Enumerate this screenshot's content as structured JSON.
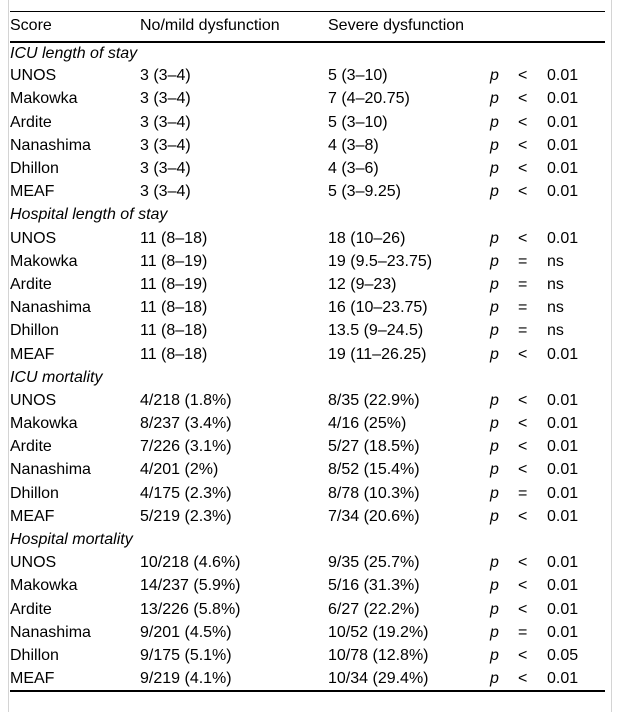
{
  "table": {
    "headers": {
      "score": "Score",
      "no_mild": "No/mild dysfunction",
      "severe": "Severe dysfunction"
    },
    "p_symbol": "p",
    "sections": [
      {
        "label": "ICU length of stay",
        "rows": [
          {
            "score": "UNOS",
            "no_mild": "3 (3–4)",
            "severe": "5 (3–10)",
            "op": "<",
            "p_value": "0.01"
          },
          {
            "score": "Makowka",
            "no_mild": "3 (3–4)",
            "severe": "7 (4–20.75)",
            "op": "<",
            "p_value": "0.01"
          },
          {
            "score": "Ardite",
            "no_mild": "3 (3–4)",
            "severe": "5 (3–10)",
            "op": "<",
            "p_value": "0.01"
          },
          {
            "score": "Nanashima",
            "no_mild": "3 (3–4)",
            "severe": "4 (3–8)",
            "op": "<",
            "p_value": "0.01"
          },
          {
            "score": "Dhillon",
            "no_mild": "3 (3–4)",
            "severe": "4 (3–6)",
            "op": "<",
            "p_value": "0.01"
          },
          {
            "score": "MEAF",
            "no_mild": "3 (3–4)",
            "severe": "5 (3–9.25)",
            "op": "<",
            "p_value": "0.01"
          }
        ]
      },
      {
        "label": "Hospital length of stay",
        "rows": [
          {
            "score": "UNOS",
            "no_mild": "11 (8–18)",
            "severe": "18 (10–26)",
            "op": "<",
            "p_value": "0.01"
          },
          {
            "score": "Makowka",
            "no_mild": "11 (8–19)",
            "severe": "19 (9.5–23.75)",
            "op": "=",
            "p_value": "ns"
          },
          {
            "score": "Ardite",
            "no_mild": "11 (8–19)",
            "severe": "12 (9–23)",
            "op": "=",
            "p_value": "ns"
          },
          {
            "score": "Nanashima",
            "no_mild": "11 (8–18)",
            "severe": "16 (10–23.75)",
            "op": "=",
            "p_value": "ns"
          },
          {
            "score": "Dhillon",
            "no_mild": "11 (8–18)",
            "severe": "13.5 (9–24.5)",
            "op": "=",
            "p_value": "ns"
          },
          {
            "score": "MEAF",
            "no_mild": "11 (8–18)",
            "severe": "19 (11–26.25)",
            "op": "<",
            "p_value": "0.01"
          }
        ]
      },
      {
        "label": "ICU mortality",
        "rows": [
          {
            "score": "UNOS",
            "no_mild": "4/218 (1.8%)",
            "severe": "8/35 (22.9%)",
            "op": "<",
            "p_value": "0.01"
          },
          {
            "score": "Makowka",
            "no_mild": "8/237 (3.4%)",
            "severe": "4/16 (25%)",
            "op": "<",
            "p_value": "0.01"
          },
          {
            "score": "Ardite",
            "no_mild": "7/226 (3.1%)",
            "severe": "5/27 (18.5%)",
            "op": "<",
            "p_value": "0.01"
          },
          {
            "score": "Nanashima",
            "no_mild": "4/201 (2%)",
            "severe": "8/52 (15.4%)",
            "op": "<",
            "p_value": "0.01"
          },
          {
            "score": "Dhillon",
            "no_mild": "4/175 (2.3%)",
            "severe": "8/78 (10.3%)",
            "op": "=",
            "p_value": "0.01"
          },
          {
            "score": "MEAF",
            "no_mild": "5/219 (2.3%)",
            "severe": "7/34 (20.6%)",
            "op": "<",
            "p_value": "0.01"
          }
        ]
      },
      {
        "label": "Hospital mortality",
        "rows": [
          {
            "score": "UNOS",
            "no_mild": "10/218 (4.6%)",
            "severe": "9/35 (25.7%)",
            "op": "<",
            "p_value": "0.01"
          },
          {
            "score": "Makowka",
            "no_mild": "14/237 (5.9%)",
            "severe": "5/16 (31.3%)",
            "op": "<",
            "p_value": "0.01"
          },
          {
            "score": "Ardite",
            "no_mild": "13/226 (5.8%)",
            "severe": "6/27 (22.2%)",
            "op": "<",
            "p_value": "0.01"
          },
          {
            "score": "Nanashima",
            "no_mild": "9/201 (4.5%)",
            "severe": "10/52 (19.2%)",
            "op": "=",
            "p_value": "0.01"
          },
          {
            "score": "Dhillon",
            "no_mild": "9/175 (5.1%)",
            "severe": "10/78 (12.8%)",
            "op": "<",
            "p_value": "0.05"
          },
          {
            "score": "MEAF",
            "no_mild": "9/219 (4.1%)",
            "severe": "10/34 (29.4%)",
            "op": "<",
            "p_value": "0.01"
          }
        ]
      }
    ]
  },
  "colors": {
    "text": "#000000",
    "rule": "#000000",
    "frame_border": "#d4d4d4",
    "background": "#ffffff"
  }
}
